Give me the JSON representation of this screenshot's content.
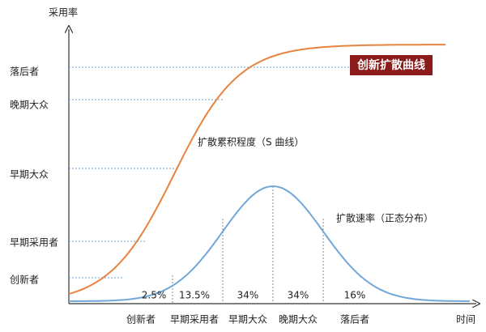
{
  "title": "创新扩散曲线",
  "y_axis_label": "采用率",
  "x_axis_label": "时间",
  "y_levels": [
    "落后者",
    "晚期大众",
    "早期大众",
    "早期采用者",
    "创新者"
  ],
  "x_segments": [
    "创新者",
    "早期采用者",
    "早期大众",
    "晚期大众",
    "落后者"
  ],
  "segment_shares": [
    "2.5%",
    "13.5%",
    "34%",
    "34%",
    "16%"
  ],
  "s_curve_label": "扩散累积程度（S 曲线）",
  "bell_curve_label": "扩散速率（正态分布）"
}
